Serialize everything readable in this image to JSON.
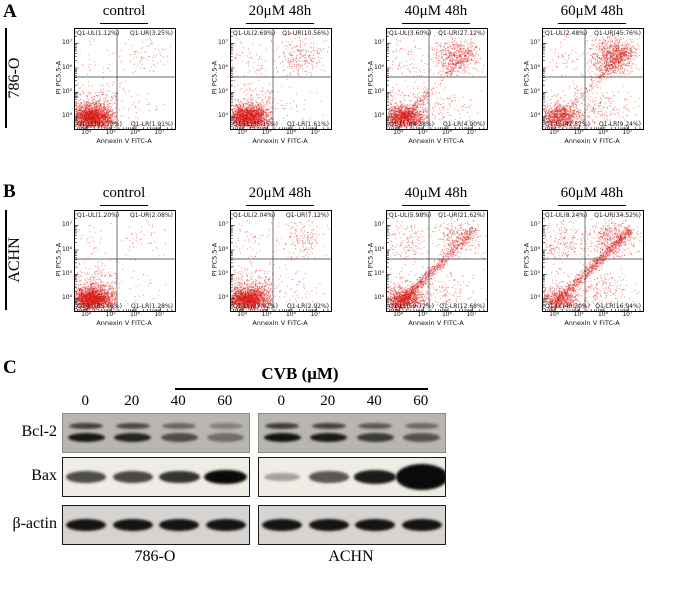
{
  "panels": {
    "a": {
      "label": "A",
      "cell_line": "786-O",
      "columns": [
        "control",
        "20μM 48h",
        "40μM 48h",
        "60μM 48h"
      ],
      "axes": {
        "x": "Annexin V FITC-A",
        "y": "PI PC5.5-A",
        "x_ticks": [
          "10⁴",
          "10⁵",
          "10⁶",
          "10⁷"
        ],
        "y_ticks": [
          "10⁴",
          "10⁵",
          "10⁶",
          "10⁷"
        ]
      },
      "plots": [
        {
          "condition": "control",
          "pattern": "cluster",
          "quadrant_labels": {
            "UL": "Q1-UL(1.12%)",
            "UR": "Q1-UR(3.25%)",
            "LL": "Q1-LL(93.73%)",
            "LR": "Q1-LR(1.91%)"
          },
          "quadrant_pcts": {
            "UL": 1.12,
            "UR": 3.25,
            "LL": 93.73,
            "LR": 1.91
          }
        },
        {
          "condition": "20μM 48h",
          "pattern": "cluster",
          "quadrant_labels": {
            "UL": "Q1-UL(2.69%)",
            "UR": "Q1-UR(10.56%)",
            "LL": "Q1-LL(85.15%)",
            "LR": "Q1-LR(1.61%)"
          },
          "quadrant_pcts": {
            "UL": 2.69,
            "UR": 10.56,
            "LL": 85.15,
            "LR": 1.61
          }
        },
        {
          "condition": "40μM 48h",
          "pattern": "mild",
          "quadrant_labels": {
            "UL": "Q1-UL(3.60%)",
            "UR": "Q1-UR(27.12%)",
            "LL": "Q1-LL(64.38%)",
            "LR": "Q1-LR(4.90%)"
          },
          "quadrant_pcts": {
            "UL": 3.6,
            "UR": 27.12,
            "LL": 64.38,
            "LR": 4.9
          }
        },
        {
          "condition": "60μM 48h",
          "pattern": "mild",
          "quadrant_labels": {
            "UL": "Q1-UL(2.48%)",
            "UR": "Q1-UR(45.76%)",
            "LL": "Q1-LL(42.52%)",
            "LR": "Q1-LR(9.24%)"
          },
          "quadrant_pcts": {
            "UL": 2.48,
            "UR": 45.76,
            "LL": 42.52,
            "LR": 9.24
          }
        }
      ]
    },
    "b": {
      "label": "B",
      "cell_line": "ACHN",
      "columns": [
        "control",
        "20μM 48h",
        "40μM 48h",
        "60μM 48h"
      ],
      "axes": {
        "x": "Annexin V FITC-A",
        "y": "PI PC5.5-A",
        "x_ticks": [
          "10⁴",
          "10⁵",
          "10⁶",
          "10⁷"
        ],
        "y_ticks": [
          "10⁴",
          "10⁵",
          "10⁶",
          "10⁷"
        ]
      },
      "plots": [
        {
          "condition": "control",
          "pattern": "cluster",
          "quadrant_labels": {
            "UL": "Q1-UL(1.20%)",
            "UR": "Q1-UR(2.08%)",
            "LL": "Q1-LL(95.48%)",
            "LR": "Q1-LR(1.28%)"
          },
          "quadrant_pcts": {
            "UL": 1.2,
            "UR": 2.08,
            "LL": 95.48,
            "LR": 1.28
          }
        },
        {
          "condition": "20μM 48h",
          "pattern": "cluster",
          "quadrant_labels": {
            "UL": "Q1-UL(2.04%)",
            "UR": "Q1-UR(7.12%)",
            "LL": "Q1-LL(87.92%)",
            "LR": "Q1-LR(2.92%)"
          },
          "quadrant_pcts": {
            "UL": 2.04,
            "UR": 7.12,
            "LL": 87.92,
            "LR": 2.92
          }
        },
        {
          "condition": "40μM 48h",
          "pattern": "diagonal",
          "quadrant_labels": {
            "UL": "Q1-UL(5.98%)",
            "UR": "Q1-UR(21.62%)",
            "LL": "Q1-LL(59.72%)",
            "LR": "Q1-LR(12.68%)"
          },
          "quadrant_pcts": {
            "UL": 5.98,
            "UR": 21.62,
            "LL": 59.72,
            "LR": 12.68
          }
        },
        {
          "condition": "60μM 48h",
          "pattern": "diagonal",
          "quadrant_labels": {
            "UL": "Q1-UL(8.24%)",
            "UR": "Q1-UR(34.52%)",
            "LL": "Q1-LL(40.30%)",
            "LR": "Q1-LR(16.94%)"
          },
          "quadrant_pcts": {
            "UL": 8.24,
            "UR": 34.52,
            "LL": 40.3,
            "LR": 16.94
          }
        }
      ]
    },
    "c": {
      "label": "C",
      "title": "CVB (μM)",
      "doses": [
        "0",
        "20",
        "40",
        "60"
      ],
      "groups": [
        {
          "cell_line": "786-O"
        },
        {
          "cell_line": "ACHN"
        }
      ],
      "rows": [
        {
          "label": "Bcl-2",
          "style": "doublet",
          "bg": "#b9b6b2",
          "border": "#8b8b8b",
          "intensities": {
            "786-O": [
              0.92,
              0.85,
              0.62,
              0.42
            ],
            "ACHN": [
              0.95,
              0.9,
              0.72,
              0.58
            ]
          }
        },
        {
          "label": "Bax",
          "style": "grow",
          "bg": "#efece5",
          "border": "#1a1a1a",
          "intensities": {
            "786-O": [
              0.6,
              0.62,
              0.72,
              0.92
            ],
            "ACHN": [
              0.22,
              0.55,
              0.82,
              1.0
            ]
          }
        },
        {
          "label": "β-actin",
          "style": "uniform",
          "bg": "#d6d3d0",
          "border": "#1a1a1a",
          "intensities": {
            "786-O": [
              0.95,
              0.95,
              0.95,
              0.95
            ],
            "ACHN": [
              0.95,
              0.95,
              0.95,
              0.95
            ]
          }
        }
      ]
    }
  },
  "colors": {
    "scatter": "#da1c18",
    "gate": "#3a3a3a"
  }
}
